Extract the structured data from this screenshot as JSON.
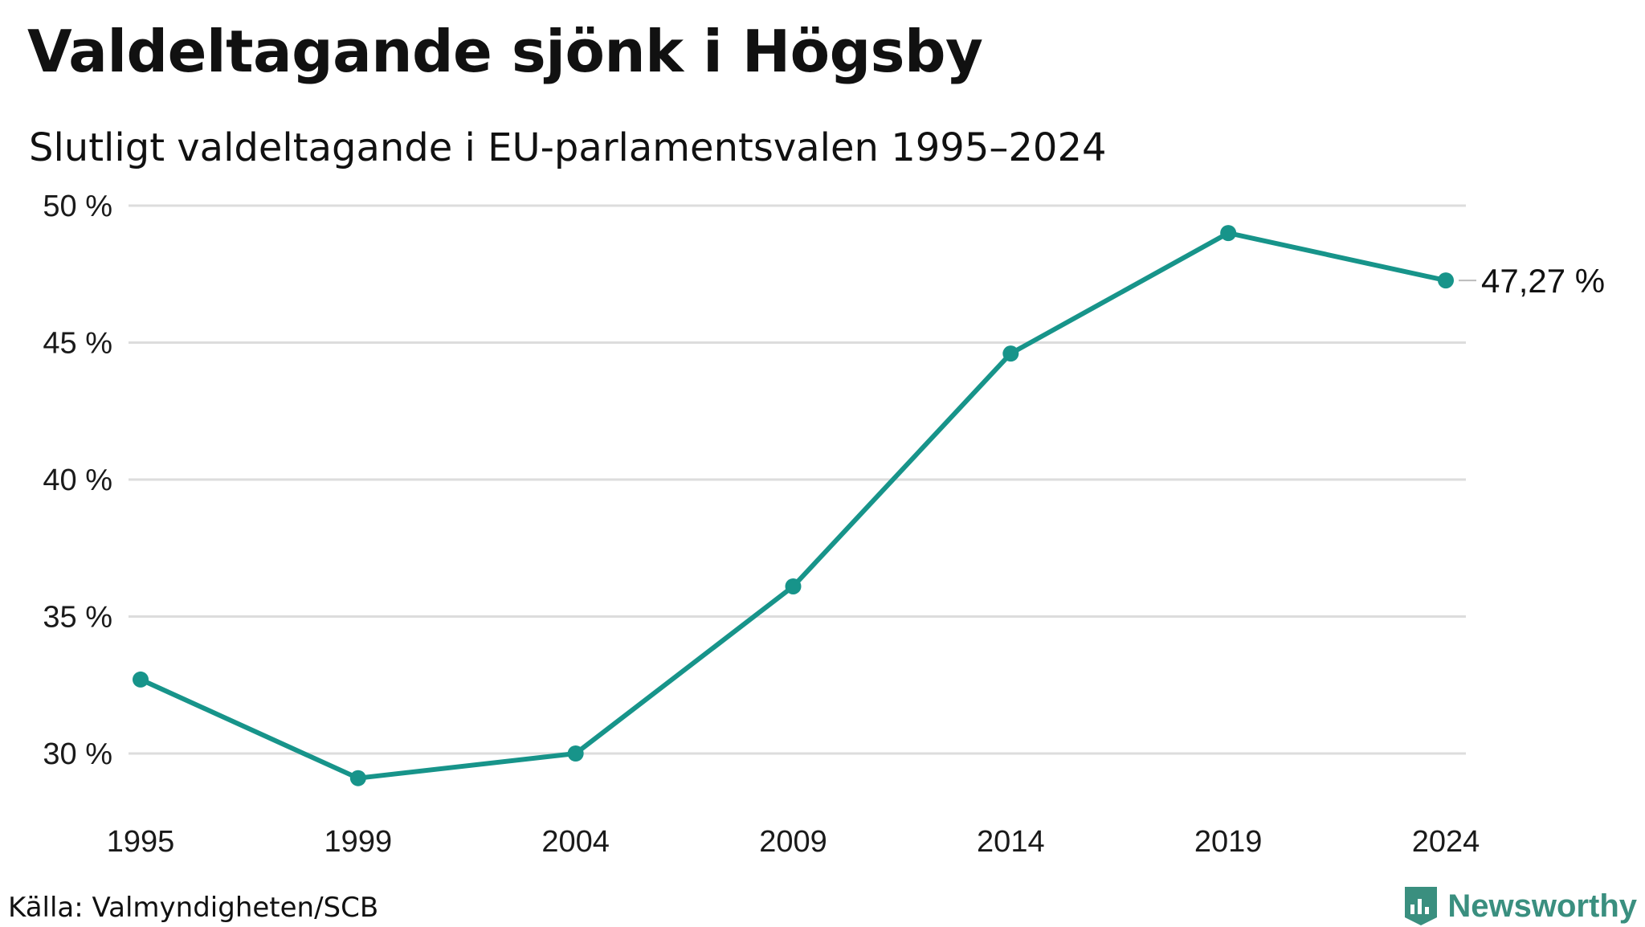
{
  "title": "Valdeltagande sjönk i Högsby",
  "subtitle": "Slutligt valdeltagande i EU-parlamentsvalen 1995–2024",
  "source": "Källa: Valmyndigheten/SCB",
  "brand": {
    "name": "Newsworthy",
    "icon": "bar-chart-shield-icon",
    "color": "#3a8f7f"
  },
  "colors": {
    "line": "#17948a",
    "grid": "#dddddd"
  },
  "chart_data": {
    "type": "line",
    "title": "Valdeltagande sjönk i Högsby",
    "subtitle": "Slutligt valdeltagande i EU-parlamentsvalen 1995–2024",
    "xlabel": "",
    "ylabel": "",
    "x": [
      "1995",
      "1999",
      "2004",
      "2009",
      "2014",
      "2019",
      "2024"
    ],
    "series": [
      {
        "name": "",
        "values": [
          32.7,
          29.1,
          30.0,
          36.1,
          44.6,
          49.0,
          47.27
        ]
      }
    ],
    "ylim": [
      30,
      50
    ],
    "yticks": [
      {
        "value": 50,
        "label": "50 %"
      },
      {
        "value": 45,
        "label": "45 %"
      },
      {
        "value": 40,
        "label": "40 %"
      },
      {
        "value": 35,
        "label": "35 %"
      },
      {
        "value": 30,
        "label": "30 %"
      }
    ],
    "end_label": "47,27 %",
    "grid": true,
    "legend": "none"
  }
}
